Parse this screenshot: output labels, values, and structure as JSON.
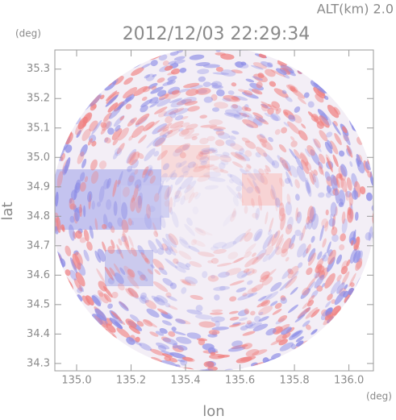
{
  "chart_data": {
    "type": "radar-field",
    "title": "2012/12/03 22:29:34",
    "altitude_label": "ALT(km) 2.0",
    "xlabel": "lon",
    "ylabel": "lat",
    "x_unit": "(deg)",
    "y_unit": "(deg)",
    "xlim": [
      134.92,
      136.09
    ],
    "ylim": [
      34.275,
      35.365
    ],
    "xticks": [
      {
        "value": 135,
        "label": "135.0"
      },
      135.2,
      135.4,
      135.6,
      135.8,
      {
        "value": 136,
        "label": "136.0"
      }
    ],
    "yticks": [
      34.3,
      34.4,
      34.5,
      34.6,
      34.7,
      34.8,
      34.9,
      {
        "value": 35,
        "label": "35.0"
      },
      35.1,
      35.2,
      35.3
    ]
  }
}
